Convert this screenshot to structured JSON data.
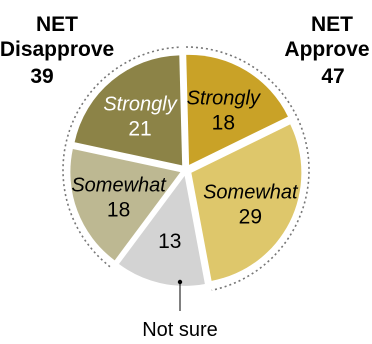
{
  "chart_data": {
    "type": "pie",
    "title": "",
    "groups": [
      {
        "net_label": "NET",
        "name": "Disapprove",
        "value": 39
      },
      {
        "net_label": "NET",
        "name": "Approve",
        "value": 47
      }
    ],
    "slices": [
      {
        "label": "Strongly",
        "value": 18,
        "group": "Approve",
        "color": "#C9A227"
      },
      {
        "label": "Somewhat",
        "value": 29,
        "group": "Approve",
        "color": "#DEC76B"
      },
      {
        "label": "",
        "value": 13,
        "group": "Not sure",
        "color": "#D3D3D3"
      },
      {
        "label": "Somewhat",
        "value": 18,
        "group": "Disapprove",
        "color": "#BDB892"
      },
      {
        "label": "Strongly",
        "value": 21,
        "group": "Disapprove",
        "color": "#8C8347"
      }
    ],
    "callout": "Not sure"
  }
}
